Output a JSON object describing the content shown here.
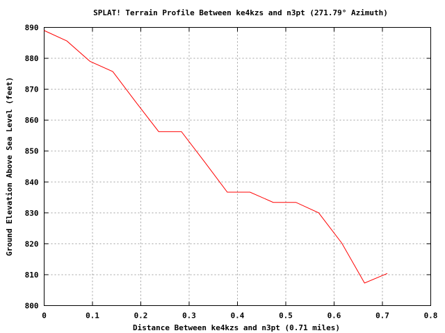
{
  "chart_data": {
    "type": "line",
    "title": "SPLAT! Terrain Profile Between ke4kzs and n3pt (271.79° Azimuth)",
    "xlabel": "Distance Between ke4kzs and n3pt (0.71 miles)",
    "ylabel": "Ground Elevation Above Sea Level (feet)",
    "xlim": [
      0,
      0.8
    ],
    "ylim": [
      800,
      890
    ],
    "xticks": [
      0,
      0.1,
      0.2,
      0.3,
      0.4,
      0.5,
      0.6,
      0.7,
      0.8
    ],
    "xtick_labels": [
      "0",
      "0.1",
      "0.2",
      "0.3",
      "0.4",
      "0.5",
      "0.6",
      "0.7",
      "0.8"
    ],
    "yticks": [
      800,
      810,
      820,
      830,
      840,
      850,
      860,
      870,
      880,
      890
    ],
    "ytick_labels": [
      "800",
      "810",
      "820",
      "830",
      "840",
      "850",
      "860",
      "870",
      "880",
      "890"
    ],
    "grid": true,
    "line_color": "#ff0000",
    "series": [
      {
        "x": [
          0,
          0.047,
          0.095,
          0.142,
          0.19,
          0.237,
          0.284,
          0.332,
          0.379,
          0.426,
          0.474,
          0.521,
          0.568,
          0.616,
          0.663,
          0.71
        ],
        "y": [
          889,
          885.6,
          879,
          875.7,
          865.8,
          856.3,
          856.3,
          846.5,
          836.7,
          836.7,
          833.4,
          833.4,
          830,
          820.2,
          807.3,
          810.4
        ]
      }
    ]
  }
}
